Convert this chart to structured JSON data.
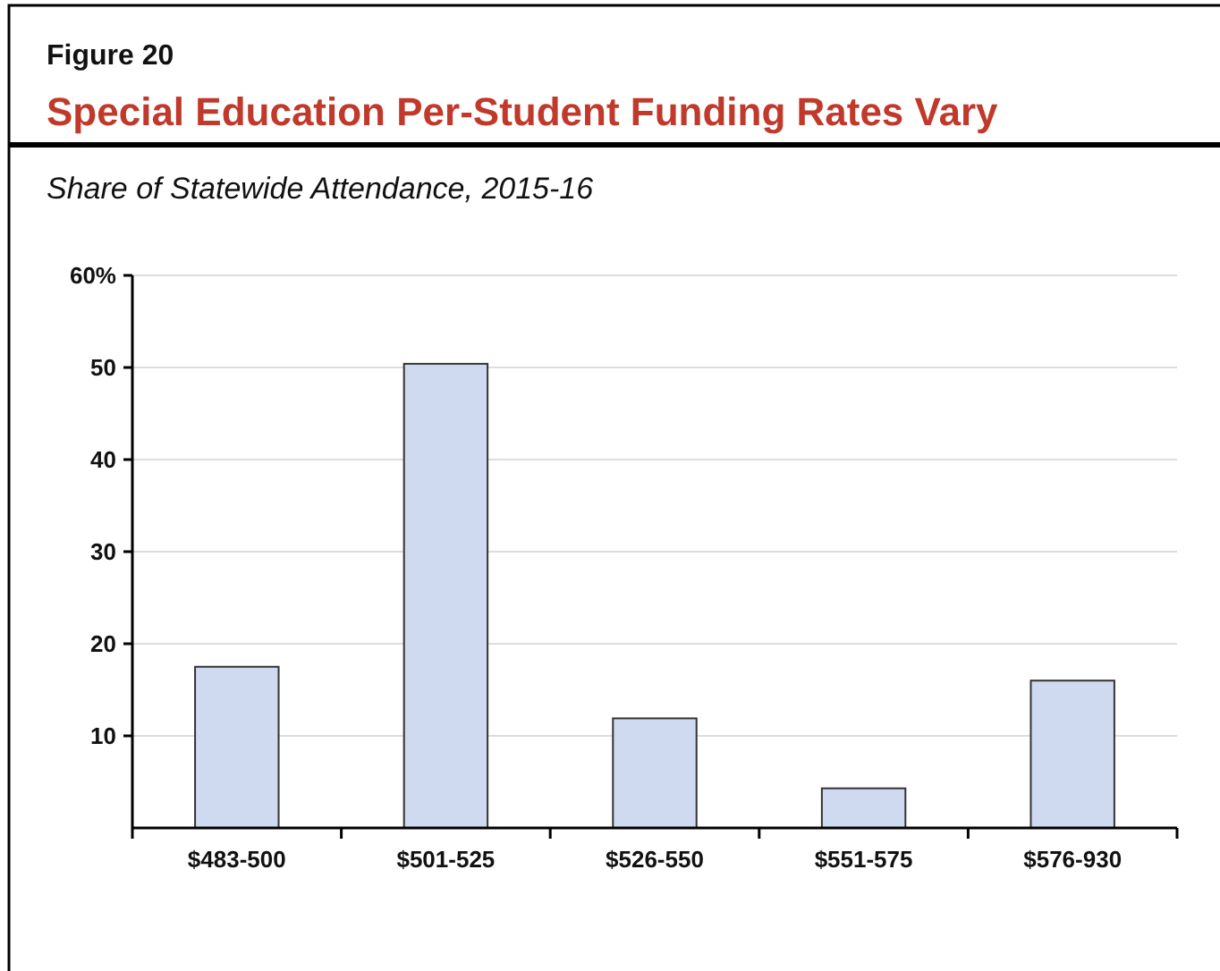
{
  "chart_data": {
    "type": "bar",
    "title": "Special Education Per-Student Funding Rates Vary",
    "subtitle": "Share of Statewide Attendance, 2015-16",
    "annotations": [
      "Figure 20"
    ],
    "categories": [
      "$483-500",
      "$501-525",
      "$526-550",
      "$551-575",
      "$576-930"
    ],
    "values": [
      17.5,
      50.4,
      11.9,
      4.3,
      16.0
    ],
    "color": "#cfdaf0",
    "ylim": [
      0,
      60
    ],
    "yticks": [
      10,
      20,
      30,
      40,
      50,
      {
        "value": 60,
        "label": "60%"
      }
    ],
    "grid": "y"
  }
}
